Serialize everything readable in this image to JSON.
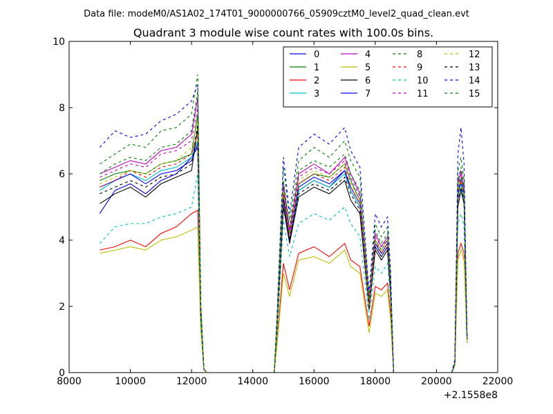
{
  "figure": {
    "suptitle": "Data file: modeM0/AS1A02_174T01_9000000766_05909cztM0_level2_quad_clean.evt"
  },
  "chart_data": {
    "type": "line",
    "title": "Quadrant 3 module wise count rates with 100.0s bins.",
    "xlabel": "",
    "ylabel": "",
    "x_offset_label": "+2.1558e8",
    "xlim": [
      8000,
      22000
    ],
    "ylim": [
      0,
      10
    ],
    "xticks": [
      8000,
      10000,
      12000,
      14000,
      16000,
      18000,
      20000,
      22000
    ],
    "yticks": [
      0,
      2,
      4,
      6,
      8,
      10
    ],
    "grid": false,
    "legend_position": "upper-right",
    "legend_columns": 4,
    "x": [
      9000,
      9500,
      10000,
      10500,
      11000,
      11500,
      12000,
      12200,
      12300,
      12400,
      12500,
      13000,
      14000,
      14700,
      14800,
      15000,
      15200,
      15500,
      16000,
      16500,
      17000,
      17200,
      17500,
      17800,
      18000,
      18200,
      18400,
      18500,
      18600,
      18700,
      19000,
      20000,
      20500,
      20600,
      20700,
      20800,
      20900,
      21000
    ],
    "series": [
      {
        "name": "0",
        "color": "#0000ff",
        "style": "solid",
        "values": [
          4.8,
          5.5,
          5.7,
          5.4,
          5.8,
          6.0,
          6.5,
          6.8,
          1.8,
          0.1,
          0,
          0,
          0,
          0,
          1.5,
          5.2,
          4.0,
          5.5,
          5.8,
          5.6,
          6.1,
          5.5,
          5.0,
          2.0,
          3.8,
          3.5,
          3.8,
          2.5,
          0,
          0,
          0,
          0,
          0,
          0.3,
          5.2,
          5.8,
          5.3,
          1.0
        ]
      },
      {
        "name": "1",
        "color": "#008000",
        "style": "solid",
        "values": [
          5.8,
          6.0,
          6.1,
          6.0,
          6.3,
          6.4,
          6.6,
          7.8,
          1.9,
          0.1,
          0,
          0,
          0,
          0,
          1.6,
          5.5,
          4.2,
          5.7,
          6.0,
          5.9,
          6.3,
          5.8,
          5.2,
          2.1,
          4.0,
          3.7,
          4.0,
          2.6,
          0,
          0,
          0,
          0,
          0,
          0.3,
          5.5,
          5.9,
          5.4,
          1.0
        ]
      },
      {
        "name": "2",
        "color": "#ff0000",
        "style": "solid",
        "values": [
          3.7,
          3.8,
          4.0,
          3.8,
          4.2,
          4.4,
          4.8,
          4.9,
          1.4,
          0.1,
          0,
          0,
          0,
          0,
          1.0,
          3.3,
          2.5,
          3.6,
          3.8,
          3.5,
          3.9,
          3.4,
          3.2,
          1.4,
          2.6,
          2.5,
          2.7,
          1.8,
          0,
          0,
          0,
          0,
          0,
          0.2,
          3.6,
          3.9,
          3.6,
          0.9
        ]
      },
      {
        "name": "3",
        "color": "#00bfbf",
        "style": "solid",
        "values": [
          5.5,
          5.8,
          6.0,
          5.8,
          6.1,
          6.2,
          6.5,
          7.0,
          1.8,
          0.1,
          0,
          0,
          0,
          0,
          1.5,
          5.3,
          4.0,
          5.5,
          5.8,
          5.6,
          6.0,
          5.5,
          5.0,
          2.0,
          3.9,
          3.6,
          3.9,
          2.5,
          0,
          0,
          0,
          0,
          0,
          0.3,
          5.3,
          5.7,
          5.2,
          1.0
        ]
      },
      {
        "name": "4",
        "color": "#bf00bf",
        "style": "solid",
        "values": [
          6.0,
          6.2,
          6.4,
          6.3,
          6.7,
          6.8,
          7.2,
          8.3,
          2.0,
          0.1,
          0,
          0,
          0,
          0,
          1.7,
          5.7,
          4.3,
          6.0,
          6.3,
          6.0,
          6.5,
          6.0,
          5.4,
          2.2,
          4.2,
          3.8,
          4.1,
          2.7,
          0,
          0,
          0,
          0,
          0,
          0.3,
          5.7,
          6.1,
          5.5,
          1.0
        ]
      },
      {
        "name": "5",
        "color": "#bfbf00",
        "style": "solid",
        "values": [
          3.6,
          3.7,
          3.8,
          3.7,
          4.0,
          4.1,
          4.3,
          4.4,
          1.3,
          0.1,
          0,
          0,
          0,
          0,
          0.9,
          3.0,
          2.3,
          3.4,
          3.5,
          3.3,
          3.7,
          3.2,
          3.0,
          1.2,
          2.4,
          2.3,
          2.5,
          1.6,
          0,
          0,
          0,
          0,
          0,
          0.2,
          3.4,
          3.7,
          3.4,
          0.9
        ]
      },
      {
        "name": "6",
        "color": "#000000",
        "style": "solid",
        "values": [
          5.1,
          5.4,
          5.6,
          5.3,
          5.7,
          5.9,
          6.1,
          7.4,
          1.8,
          0.1,
          0,
          0,
          0,
          0,
          1.5,
          5.0,
          3.9,
          5.3,
          5.6,
          5.4,
          5.8,
          5.2,
          4.8,
          1.9,
          3.7,
          3.4,
          3.7,
          2.4,
          0,
          0,
          0,
          0,
          0,
          0.3,
          5.0,
          5.5,
          5.1,
          1.0
        ]
      },
      {
        "name": "7",
        "color": "#0000ff",
        "style": "solid",
        "values": [
          5.6,
          5.8,
          6.0,
          5.7,
          6.0,
          6.1,
          6.4,
          6.9,
          1.8,
          0.1,
          0,
          0,
          0,
          0,
          1.5,
          5.3,
          4.0,
          5.6,
          5.9,
          5.7,
          6.1,
          5.6,
          5.1,
          2.0,
          3.9,
          3.6,
          3.9,
          2.5,
          0,
          0,
          0,
          0,
          0,
          0.3,
          5.4,
          5.8,
          5.3,
          1.0
        ]
      },
      {
        "name": "8",
        "color": "#008000",
        "style": "dashed",
        "values": [
          6.3,
          6.6,
          6.9,
          6.8,
          7.3,
          7.4,
          7.8,
          9.0,
          2.1,
          0.1,
          0,
          0,
          0,
          0,
          1.8,
          6.2,
          4.6,
          6.4,
          6.8,
          6.5,
          7.0,
          6.4,
          5.9,
          2.3,
          4.5,
          4.1,
          4.4,
          2.9,
          0,
          0,
          0,
          0,
          0,
          0.3,
          6.1,
          6.5,
          5.8,
          1.0
        ]
      },
      {
        "name": "9",
        "color": "#ff0000",
        "style": "dashed",
        "values": [
          5.6,
          5.8,
          6.1,
          5.9,
          6.2,
          6.3,
          6.6,
          7.2,
          1.9,
          0.1,
          0,
          0,
          0,
          0,
          1.6,
          5.4,
          4.1,
          5.7,
          6.0,
          5.8,
          6.2,
          5.6,
          5.1,
          2.0,
          4.0,
          3.6,
          3.9,
          2.5,
          0,
          0,
          0,
          0,
          0,
          0.3,
          5.4,
          5.8,
          5.3,
          1.0
        ]
      },
      {
        "name": "10",
        "color": "#00bfbf",
        "style": "dashed",
        "values": [
          3.9,
          4.4,
          4.5,
          4.5,
          4.7,
          4.8,
          5.0,
          6.0,
          1.5,
          0.1,
          0,
          0,
          0,
          0,
          1.2,
          4.6,
          3.5,
          4.5,
          4.8,
          4.6,
          5.0,
          4.5,
          4.1,
          1.6,
          3.2,
          3.0,
          3.3,
          2.1,
          0,
          0,
          0,
          0,
          0,
          0.2,
          4.5,
          4.8,
          4.4,
          0.9
        ]
      },
      {
        "name": "11",
        "color": "#bf00bf",
        "style": "dashed",
        "values": [
          5.9,
          6.1,
          6.3,
          6.2,
          6.6,
          6.7,
          7.0,
          8.0,
          2.0,
          0.1,
          0,
          0,
          0,
          0,
          1.7,
          5.6,
          4.2,
          5.9,
          6.2,
          6.0,
          6.4,
          5.9,
          5.3,
          2.1,
          4.1,
          3.8,
          4.0,
          2.6,
          0,
          0,
          0,
          0,
          0,
          0.3,
          5.6,
          6.0,
          5.4,
          1.0
        ]
      },
      {
        "name": "12",
        "color": "#bfbf00",
        "style": "dashed",
        "values": [
          5.7,
          5.9,
          6.1,
          6.0,
          6.3,
          6.4,
          6.8,
          7.6,
          1.9,
          0.1,
          0,
          0,
          0,
          0,
          1.6,
          5.5,
          4.1,
          5.8,
          6.1,
          5.9,
          6.3,
          5.7,
          5.2,
          2.0,
          4.0,
          3.7,
          4.0,
          2.6,
          0,
          0,
          0,
          0,
          0,
          0.3,
          5.5,
          5.9,
          5.3,
          1.0
        ]
      },
      {
        "name": "13",
        "color": "#000000",
        "style": "dashed",
        "values": [
          5.4,
          5.6,
          5.8,
          5.6,
          5.9,
          6.0,
          6.3,
          7.5,
          1.8,
          0.1,
          0,
          0,
          0,
          0,
          1.5,
          5.2,
          4.0,
          5.4,
          5.7,
          5.5,
          5.9,
          5.4,
          4.9,
          1.9,
          3.8,
          3.5,
          3.8,
          2.4,
          0,
          0,
          0,
          0,
          0,
          0.3,
          5.2,
          5.6,
          5.1,
          1.0
        ]
      },
      {
        "name": "14",
        "color": "#0000ff",
        "style": "dashed",
        "values": [
          6.8,
          7.3,
          7.1,
          7.2,
          7.6,
          7.8,
          8.2,
          8.7,
          2.2,
          0.1,
          0,
          0,
          0,
          0,
          1.9,
          6.5,
          4.8,
          6.8,
          7.2,
          6.9,
          7.4,
          6.7,
          6.2,
          2.4,
          4.8,
          4.4,
          4.7,
          3.1,
          0,
          0,
          0,
          0,
          0,
          0.4,
          6.6,
          7.4,
          6.3,
          1.1
        ]
      },
      {
        "name": "15",
        "color": "#008000",
        "style": "dashed",
        "values": [
          6.0,
          6.3,
          6.5,
          6.4,
          6.8,
          6.9,
          7.3,
          8.5,
          2.0,
          0.1,
          0,
          0,
          0,
          0,
          1.7,
          5.8,
          4.4,
          6.1,
          6.4,
          6.2,
          6.6,
          6.0,
          5.5,
          2.2,
          4.3,
          3.9,
          4.2,
          2.8,
          0,
          0,
          0,
          0,
          0,
          0.3,
          5.8,
          6.2,
          5.6,
          1.0
        ]
      }
    ]
  }
}
